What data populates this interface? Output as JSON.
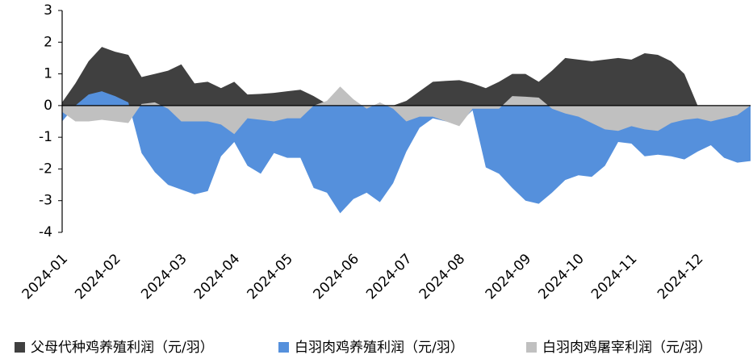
{
  "chart_data": {
    "type": "area",
    "categories": [
      "2024-01",
      null,
      null,
      null,
      "2024-02",
      null,
      null,
      null,
      null,
      "2024-03",
      null,
      null,
      null,
      "2024-04",
      null,
      null,
      null,
      "2024-05",
      null,
      null,
      null,
      null,
      "2024-06",
      null,
      null,
      null,
      "2024-07",
      null,
      null,
      null,
      "2024-08",
      null,
      null,
      null,
      null,
      "2024-09",
      null,
      null,
      null,
      "2024-10",
      null,
      null,
      null,
      "2024-11",
      null,
      null,
      null,
      null,
      "2024-12",
      null,
      null,
      null,
      null
    ],
    "series": [
      {
        "name": "父母代种鸡养殖利润（元/羽）",
        "color": "#404040",
        "values": [
          0.1,
          0.7,
          1.4,
          1.85,
          1.7,
          1.6,
          0.9,
          1.0,
          1.1,
          1.3,
          0.7,
          0.75,
          0.55,
          0.75,
          0.35,
          0.37,
          0.4,
          0.45,
          0.5,
          0.3,
          0.05,
          0,
          0,
          0,
          0,
          0,
          0.15,
          0.45,
          0.75,
          0.78,
          0.8,
          0.7,
          0.55,
          0.75,
          1.0,
          1.0,
          0.75,
          1.1,
          1.5,
          1.45,
          1.4,
          1.45,
          1.5,
          1.45,
          1.65,
          1.6,
          1.4,
          1.0,
          0,
          0,
          0,
          0,
          0
        ]
      },
      {
        "name": "白羽肉鸡养殖利润（元/羽）",
        "color": "#5590dc",
        "values": [
          -0.5,
          0,
          0.35,
          0.45,
          0.3,
          0.1,
          -1.5,
          -2.1,
          -2.5,
          -2.65,
          -2.8,
          -2.7,
          -1.6,
          -1.15,
          -1.9,
          -2.15,
          -1.5,
          -1.65,
          -1.65,
          -2.6,
          -2.75,
          -3.4,
          -2.95,
          -2.75,
          -3.05,
          -2.45,
          -1.45,
          -0.7,
          -0.4,
          -0.5,
          -0.55,
          -0.15,
          -1.95,
          -2.15,
          -2.6,
          -3.0,
          -3.1,
          -2.75,
          -2.35,
          -2.2,
          -2.25,
          -1.9,
          -1.15,
          -1.2,
          -1.6,
          -1.55,
          -1.6,
          -1.7,
          -1.45,
          -1.25,
          -1.65,
          -1.8,
          -1.75
        ]
      },
      {
        "name": "白羽肉鸡屠宰利润（元/羽）",
        "color": "#c0c0c0",
        "values": [
          -0.2,
          -0.5,
          -0.5,
          -0.45,
          -0.5,
          -0.55,
          0.05,
          0.1,
          -0.1,
          -0.5,
          -0.5,
          -0.5,
          -0.6,
          -0.9,
          -0.4,
          -0.45,
          -0.5,
          -0.4,
          -0.4,
          0,
          0.15,
          0.6,
          0.2,
          -0.1,
          0.1,
          -0.1,
          -0.5,
          -0.35,
          -0.35,
          -0.5,
          -0.65,
          -0.1,
          -0.1,
          -0.1,
          0.3,
          0.28,
          0.25,
          -0.1,
          -0.25,
          -0.35,
          -0.55,
          -0.75,
          -0.8,
          -0.65,
          -0.75,
          -0.8,
          -0.55,
          -0.45,
          -0.4,
          -0.5,
          -0.4,
          -0.3,
          0
        ]
      }
    ],
    "ylim": [
      -4,
      3
    ],
    "yticks": [
      -4,
      -3,
      -2,
      -1,
      0,
      1,
      2,
      3
    ],
    "legend": "bottom"
  }
}
